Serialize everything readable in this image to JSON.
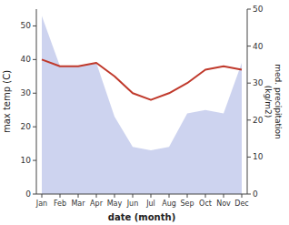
{
  "chart_data": {
    "type": "line",
    "categories": [
      "Jan",
      "Feb",
      "Mar",
      "Apr",
      "May",
      "Jun",
      "Jul",
      "Aug",
      "Sep",
      "Oct",
      "Nov",
      "Dec"
    ],
    "series": [
      {
        "type": "area",
        "color": "#b8c0e8",
        "values": [
          53,
          38,
          38,
          39,
          23,
          14,
          13,
          14,
          24,
          25,
          24,
          39
        ]
      },
      {
        "type": "line",
        "color": "#c0392b",
        "values": [
          40,
          38,
          38,
          39,
          35,
          30,
          28,
          30,
          33,
          37,
          38,
          37
        ]
      }
    ],
    "x_label": "date (month)",
    "y_label": "max temp (C)",
    "y2_label": "med. precipitation\n(kg/m2)",
    "ylim": [
      0,
      55
    ],
    "yticks": [
      0,
      10,
      20,
      30,
      40,
      50
    ],
    "y2lim": [
      0,
      50
    ],
    "y2ticks": [
      0,
      10,
      20,
      30,
      40,
      50
    ],
    "grid": false
  }
}
